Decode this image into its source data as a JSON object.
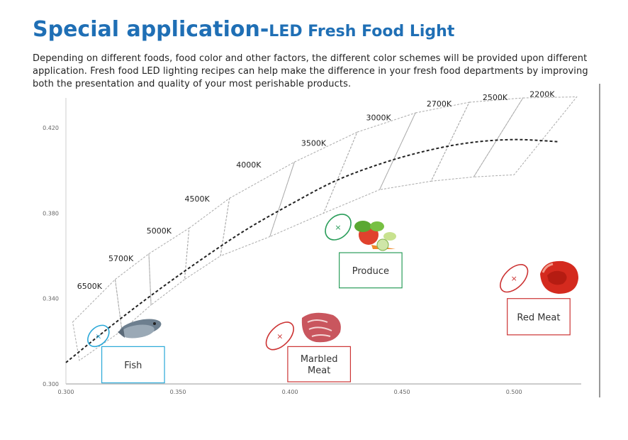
{
  "header": {
    "title_main": "Special application-",
    "title_sub": "LED Fresh Food Light",
    "intro": "Depending on different foods,  food color and other factors, the different color schemes will be provided upon different application. Fresh food LED lighting recipes can help make the difference in your fresh food departments by improving both the presentation and quality of your most perishable products."
  },
  "chart_data": {
    "type": "scatter",
    "xlim": [
      0.3,
      0.53
    ],
    "ylim": [
      0.3,
      0.44
    ],
    "x_ticks": [
      "0.300",
      "0.350",
      "0.400",
      "0.450",
      "0.500"
    ],
    "y_ticks": [
      "0.300",
      "0.340",
      "0.380",
      "0.420"
    ],
    "grid": false,
    "planckian_locus": [
      [
        0.3,
        0.31
      ],
      [
        0.32,
        0.327
      ],
      [
        0.34,
        0.343
      ],
      [
        0.36,
        0.358
      ],
      [
        0.38,
        0.372
      ],
      [
        0.4,
        0.384
      ],
      [
        0.42,
        0.395
      ],
      [
        0.44,
        0.403
      ],
      [
        0.46,
        0.409
      ],
      [
        0.48,
        0.413
      ],
      [
        0.5,
        0.4145
      ],
      [
        0.52,
        0.4135
      ]
    ],
    "cct_labels": [
      {
        "label": "6500K",
        "x": 0.305,
        "y": 0.3445
      },
      {
        "label": "5700K",
        "x": 0.319,
        "y": 0.3575
      },
      {
        "label": "5000K",
        "x": 0.336,
        "y": 0.3705
      },
      {
        "label": "4500K",
        "x": 0.353,
        "y": 0.3855
      },
      {
        "label": "4000K",
        "x": 0.376,
        "y": 0.4015
      },
      {
        "label": "3500K",
        "x": 0.405,
        "y": 0.4115
      },
      {
        "label": "3000K",
        "x": 0.434,
        "y": 0.4235
      },
      {
        "label": "2700K",
        "x": 0.461,
        "y": 0.43
      },
      {
        "label": "2500K",
        "x": 0.486,
        "y": 0.433
      },
      {
        "label": "2200K",
        "x": 0.507,
        "y": 0.4345
      }
    ],
    "quadrangles": [
      [
        [
          0.303,
          0.329
        ],
        [
          0.322,
          0.349
        ],
        [
          0.325,
          0.325
        ],
        [
          0.306,
          0.311
        ]
      ],
      [
        [
          0.322,
          0.349
        ],
        [
          0.337,
          0.361
        ],
        [
          0.338,
          0.337
        ],
        [
          0.325,
          0.325
        ]
      ],
      [
        [
          0.337,
          0.361
        ],
        [
          0.355,
          0.373
        ],
        [
          0.353,
          0.349
        ],
        [
          0.338,
          0.337
        ]
      ],
      [
        [
          0.355,
          0.373
        ],
        [
          0.373,
          0.387
        ],
        [
          0.369,
          0.36
        ],
        [
          0.353,
          0.349
        ]
      ],
      [
        [
          0.373,
          0.387
        ],
        [
          0.402,
          0.404
        ],
        [
          0.391,
          0.369
        ],
        [
          0.369,
          0.36
        ]
      ],
      [
        [
          0.402,
          0.404
        ],
        [
          0.43,
          0.418
        ],
        [
          0.415,
          0.38
        ],
        [
          0.391,
          0.369
        ]
      ],
      [
        [
          0.43,
          0.418
        ],
        [
          0.456,
          0.427
        ],
        [
          0.44,
          0.391
        ],
        [
          0.415,
          0.38
        ]
      ],
      [
        [
          0.456,
          0.427
        ],
        [
          0.48,
          0.432
        ],
        [
          0.463,
          0.395
        ],
        [
          0.44,
          0.391
        ]
      ],
      [
        [
          0.48,
          0.432
        ],
        [
          0.504,
          0.434
        ],
        [
          0.482,
          0.397
        ],
        [
          0.463,
          0.395
        ]
      ],
      [
        [
          0.504,
          0.434
        ],
        [
          0.528,
          0.4345
        ],
        [
          0.5,
          0.398
        ],
        [
          0.482,
          0.397
        ]
      ]
    ],
    "food_regions": [
      {
        "name": "Fish",
        "label": "Fish",
        "color": "#29a8d8",
        "center": [
          0.3145,
          0.3225
        ],
        "rx": 0.0055,
        "ry": 0.004,
        "rot": -45,
        "box": {
          "x0": 0.316,
          "x1": 0.344,
          "y0": 0.3005,
          "y1": 0.3175
        }
      },
      {
        "name": "Produce",
        "label": "Produce",
        "color": "#2a9d5a",
        "center": [
          0.4215,
          0.3735
        ],
        "rx": 0.0065,
        "ry": 0.005,
        "rot": -45,
        "box": {
          "x0": 0.422,
          "x1": 0.45,
          "y0": 0.345,
          "y1": 0.3615
        }
      },
      {
        "name": "Marbled Meat",
        "label": "Marbled\nMeat",
        "color": "#cc3333",
        "center": [
          0.3955,
          0.3225
        ],
        "rx": 0.0075,
        "ry": 0.0045,
        "rot": -45,
        "box": {
          "x0": 0.399,
          "x1": 0.427,
          "y0": 0.301,
          "y1": 0.3175
        }
      },
      {
        "name": "Red Meat",
        "label": "Red Meat",
        "color": "#cc3333",
        "center": [
          0.5,
          0.3495
        ],
        "rx": 0.0075,
        "ry": 0.0045,
        "rot": -45,
        "box": {
          "x0": 0.497,
          "x1": 0.525,
          "y0": 0.323,
          "y1": 0.34
        }
      }
    ]
  },
  "icons": {
    "fish": "fish-icon",
    "produce": "vegetables-icon",
    "marbled_meat": "marbled-meat-icon",
    "red_meat": "red-meat-icon"
  },
  "colors": {
    "title": "#1f6fb5",
    "locus": "#222222",
    "quad": "#aaaaaa",
    "axis": "#999999"
  }
}
